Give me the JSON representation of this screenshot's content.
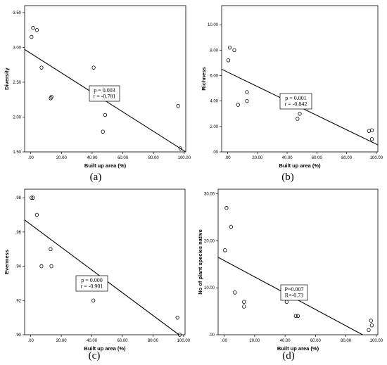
{
  "chart_data": [
    {
      "type": "scatter",
      "panel_label": "(a)",
      "xlabel": "Built up area (%)",
      "ylabel": "Diversity",
      "xlim": [
        -4,
        101
      ],
      "ylim": [
        1.5,
        3.6
      ],
      "xticks": [
        ".00",
        "20.00",
        "40.00",
        "60.00",
        "80.00",
        "100.00"
      ],
      "yticks": [
        "1.50",
        "2.00",
        "2.50",
        "3.00",
        "3.50"
      ],
      "points": [
        [
          0.5,
          3.15
        ],
        [
          1.5,
          3.28
        ],
        [
          4,
          3.25
        ],
        [
          7,
          2.71
        ],
        [
          13,
          2.27
        ],
        [
          13.5,
          2.29
        ],
        [
          41,
          2.71
        ],
        [
          48.5,
          2.03
        ],
        [
          47,
          1.79
        ],
        [
          96,
          2.16
        ],
        [
          97.5,
          1.55
        ]
      ],
      "fit_line": [
        [
          -4,
          2.97
        ],
        [
          101,
          1.5
        ]
      ],
      "annotation": [
        "p = 0.003",
        "r = -0.781"
      ]
    },
    {
      "type": "scatter",
      "panel_label": "(b)",
      "xlabel": "Built up area (%)",
      "ylabel": "Richness",
      "xlim": [
        -4,
        101
      ],
      "ylim": [
        0,
        11.5
      ],
      "xticks": [
        ".00",
        "20.00",
        "40.00",
        "60.00",
        "80.00",
        "100.00"
      ],
      "yticks": [
        ".00",
        "2.00",
        "4.00",
        "6.00",
        "8.00",
        "10.00"
      ],
      "points": [
        [
          0.5,
          7.2
        ],
        [
          1.5,
          8.2
        ],
        [
          4.5,
          8.0
        ],
        [
          7,
          3.7
        ],
        [
          13,
          4.7
        ],
        [
          13,
          4.0
        ],
        [
          47,
          2.6
        ],
        [
          48.5,
          3.0
        ],
        [
          95,
          1.65
        ],
        [
          97,
          1.7
        ],
        [
          97,
          1.0
        ]
      ],
      "fit_line": [
        [
          -4,
          6.5
        ],
        [
          101,
          0.55
        ]
      ],
      "annotation": [
        "p = 0.001",
        "r = -0.842"
      ]
    },
    {
      "type": "scatter",
      "panel_label": "(c)",
      "xlabel": "Built up area (%)",
      "ylabel": "Evenness",
      "xlim": [
        -4,
        101
      ],
      "ylim": [
        0.9,
        0.985
      ],
      "xticks": [
        ".00",
        "20.00",
        "40.00",
        "60.00",
        "80.00",
        "100.00"
      ],
      "yticks": [
        ".90",
        ".92",
        ".94",
        ".96",
        ".98"
      ],
      "points": [
        [
          0.5,
          0.98
        ],
        [
          1.5,
          0.98
        ],
        [
          4,
          0.97
        ],
        [
          7,
          0.94
        ],
        [
          13,
          0.95
        ],
        [
          13.5,
          0.94
        ],
        [
          41,
          0.92
        ],
        [
          96,
          0.91
        ],
        [
          97.5,
          0.9
        ]
      ],
      "fit_line": [
        [
          -4,
          0.967
        ],
        [
          97,
          0.9
        ]
      ],
      "annotation": [
        "p = 0.000",
        "r = -0.901"
      ]
    },
    {
      "type": "scatter",
      "panel_label": "(d)",
      "xlabel": "Built up area (%)",
      "ylabel": "No of plant species native",
      "xlim": [
        -4,
        101
      ],
      "ylim": [
        0,
        31
      ],
      "xticks": [
        ".00",
        "20.00",
        "40.00",
        "60.00",
        "80.00",
        "100.00"
      ],
      "yticks": [
        ".00",
        "10.00",
        "20.00",
        "30.00"
      ],
      "points": [
        [
          0.5,
          18
        ],
        [
          1.5,
          27
        ],
        [
          4.5,
          23
        ],
        [
          7,
          9
        ],
        [
          13,
          7
        ],
        [
          13,
          6
        ],
        [
          41,
          7
        ],
        [
          47,
          4
        ],
        [
          48.5,
          4
        ],
        [
          95,
          1
        ],
        [
          96.5,
          3
        ],
        [
          97,
          2
        ]
      ],
      "fit_line": [
        [
          -4,
          16.5
        ],
        [
          91,
          0
        ]
      ],
      "annotation": [
        "P=0.007",
        "R=-0.73"
      ]
    }
  ]
}
